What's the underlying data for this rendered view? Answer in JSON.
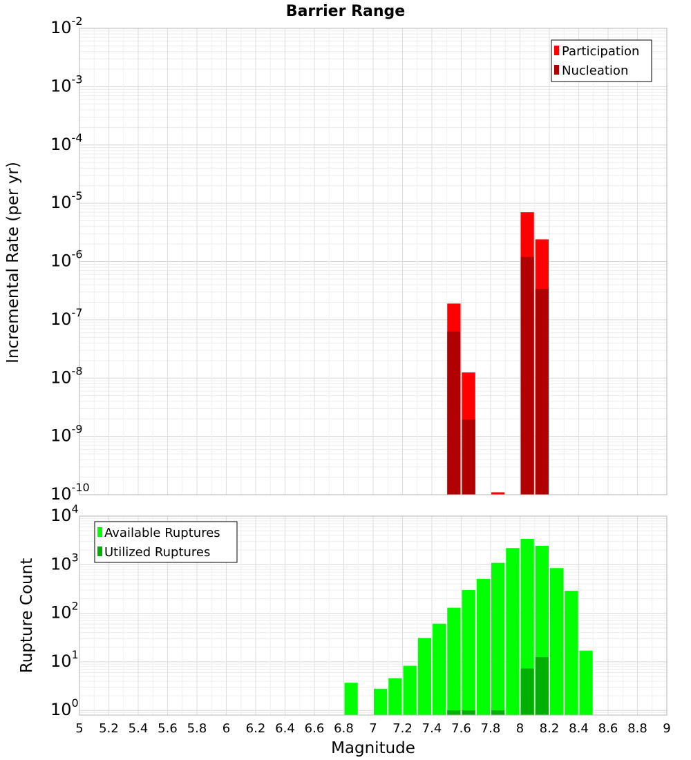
{
  "chart_data": [
    {
      "type": "bar",
      "title": "Barrier Range",
      "xlabel": "",
      "ylabel": "Incremental Rate (per yr)",
      "yscale": "log",
      "ylim": [
        1e-10,
        0.01
      ],
      "xlim": [
        5,
        9
      ],
      "grid": true,
      "legend_position": "top-right",
      "x_ticks": [
        "5",
        "5.2",
        "5.4",
        "5.6",
        "5.8",
        "6",
        "6.2",
        "6.4",
        "6.6",
        "6.8",
        "7",
        "7.2",
        "7.4",
        "7.6",
        "7.8",
        "8",
        "8.2",
        "8.4",
        "8.6",
        "8.8",
        "9"
      ],
      "y_ticks": [
        {
          "base": "10",
          "exp": "-10",
          "value": 1e-10
        },
        {
          "base": "10",
          "exp": "-9",
          "value": 1e-09
        },
        {
          "base": "10",
          "exp": "-8",
          "value": 1e-08
        },
        {
          "base": "10",
          "exp": "-7",
          "value": 1e-07
        },
        {
          "base": "10",
          "exp": "-6",
          "value": 1e-06
        },
        {
          "base": "10",
          "exp": "-5",
          "value": 1e-05
        },
        {
          "base": "10",
          "exp": "-4",
          "value": 0.0001
        },
        {
          "base": "10",
          "exp": "-3",
          "value": 0.001
        },
        {
          "base": "10",
          "exp": "-2",
          "value": 0.01
        }
      ],
      "bin_width": 0.1,
      "series": [
        {
          "name": "Participation",
          "color": "#ff0000",
          "x": [
            7.55,
            7.65,
            7.85,
            8.05,
            8.15
          ],
          "values": [
            1.9e-07,
            1.25e-08,
            1.1e-10,
            7e-06,
            2.4e-06
          ]
        },
        {
          "name": "Nucleation",
          "color": "#b10000",
          "x": [
            7.55,
            7.65,
            8.05,
            8.15
          ],
          "values": [
            6.3e-08,
            1.95e-09,
            1.2e-06,
            3.4e-07
          ]
        }
      ]
    },
    {
      "type": "bar",
      "title": "",
      "xlabel": "Magnitude",
      "ylabel": "Rupture Count",
      "yscale": "log",
      "ylim": [
        0.8,
        10000
      ],
      "xlim": [
        5,
        9
      ],
      "grid": true,
      "legend_position": "top-left",
      "x_ticks": [
        "5",
        "5.2",
        "5.4",
        "5.6",
        "5.8",
        "6",
        "6.2",
        "6.4",
        "6.6",
        "6.8",
        "7",
        "7.2",
        "7.4",
        "7.6",
        "7.8",
        "8",
        "8.2",
        "8.4",
        "8.6",
        "8.8",
        "9"
      ],
      "y_ticks": [
        {
          "base": "10",
          "exp": "0",
          "value": 1
        },
        {
          "base": "10",
          "exp": "1",
          "value": 10
        },
        {
          "base": "10",
          "exp": "2",
          "value": 100
        },
        {
          "base": "10",
          "exp": "3",
          "value": 1000
        },
        {
          "base": "10",
          "exp": "4",
          "value": 10000
        }
      ],
      "bin_width": 0.1,
      "series": [
        {
          "name": "Available Ruptures",
          "color": "#00ff00",
          "x": [
            6.85,
            7.05,
            7.15,
            7.25,
            7.35,
            7.45,
            7.55,
            7.65,
            7.75,
            7.85,
            7.95,
            8.05,
            8.15,
            8.25,
            8.35,
            8.45
          ],
          "values": [
            3.7,
            2.8,
            4.6,
            8.3,
            31,
            61,
            130,
            300,
            510,
            1090,
            2200,
            3400,
            2450,
            850,
            290,
            17
          ]
        },
        {
          "name": "Utilized Ruptures",
          "color": "#00b000",
          "x": [
            7.55,
            7.65,
            7.85,
            8.05,
            8.15
          ],
          "values": [
            1,
            1,
            1,
            7.3,
            12.5
          ]
        }
      ]
    }
  ]
}
